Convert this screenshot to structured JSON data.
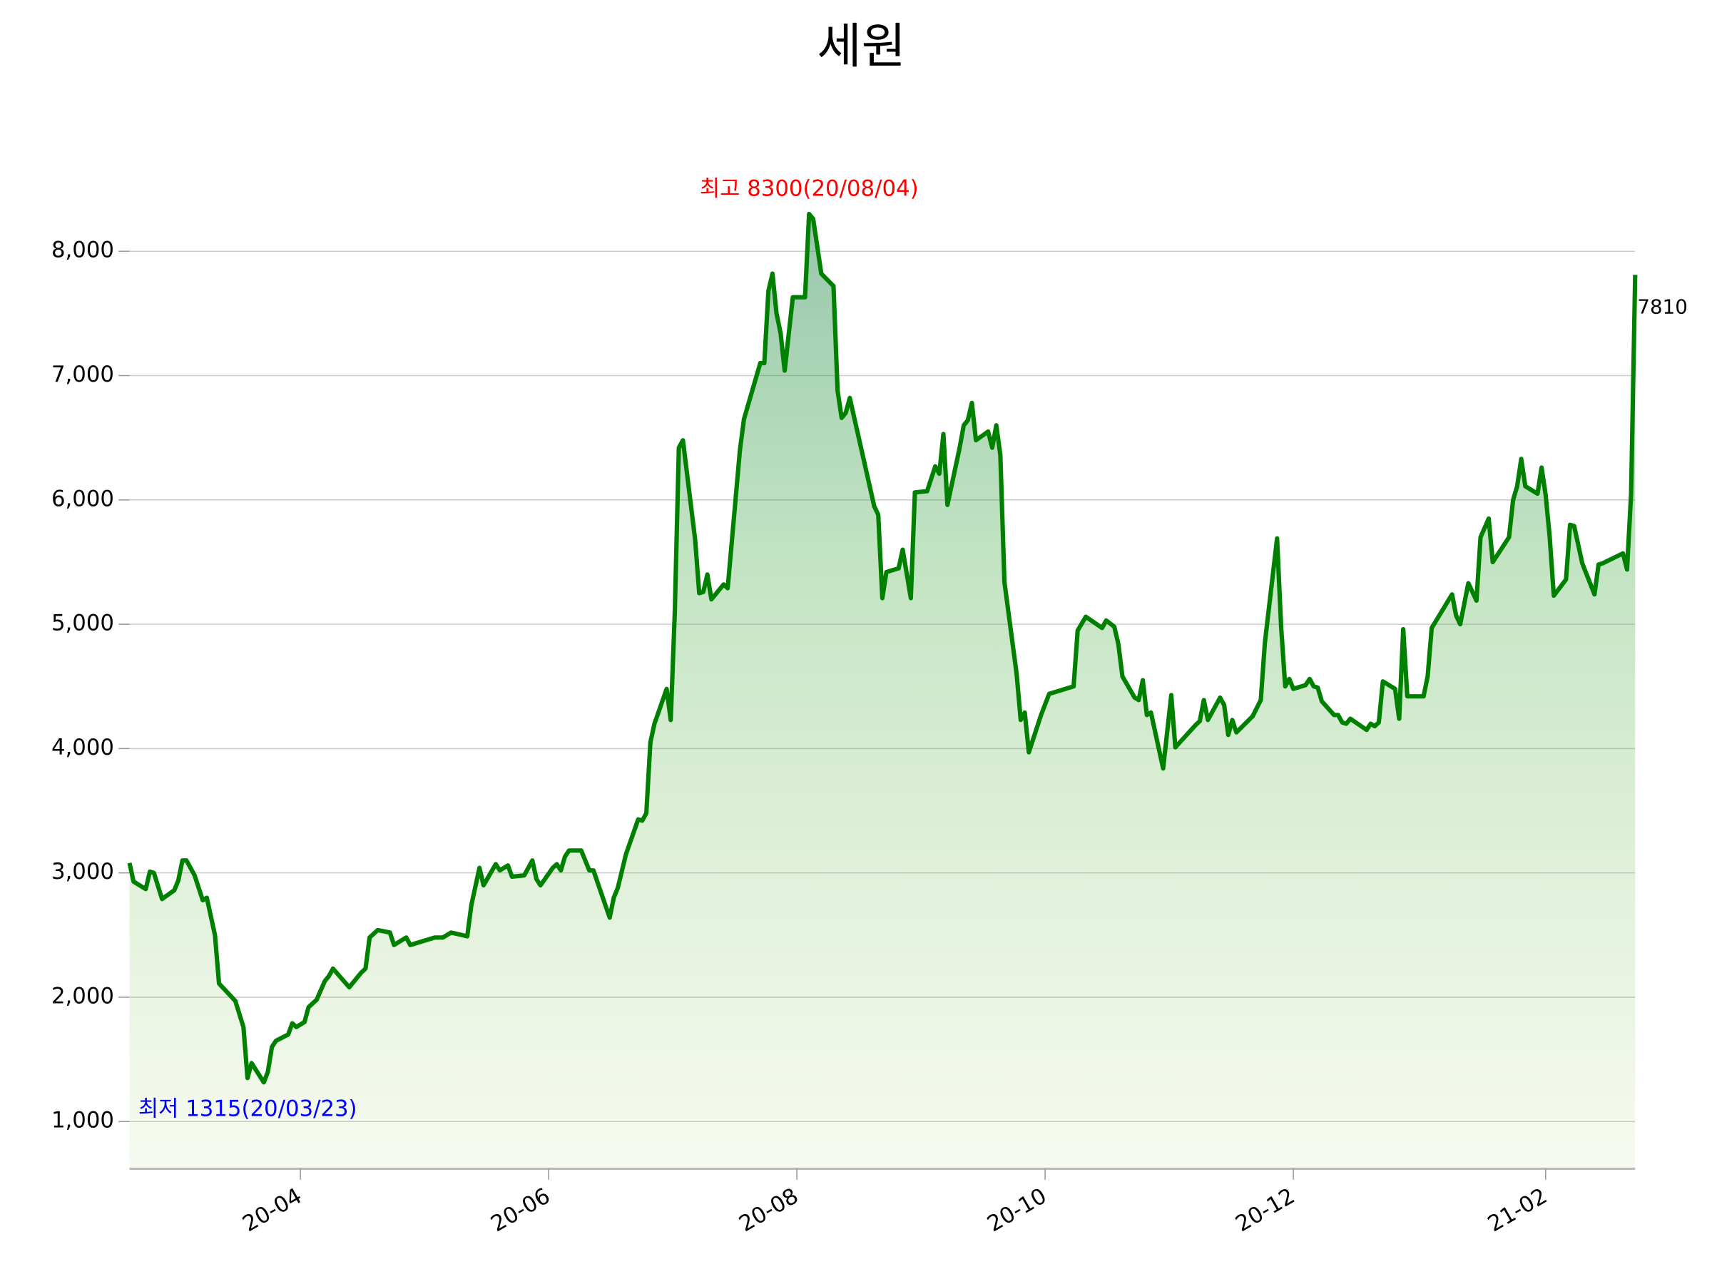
{
  "chart_data": {
    "type": "line",
    "title": "세원",
    "x": [
      "2020-02-19",
      "2020-02-20",
      "2020-02-23",
      "2020-02-24",
      "2020-02-25",
      "2020-02-27",
      "2020-03-01",
      "2020-03-02",
      "2020-03-03",
      "2020-03-04",
      "2020-03-06",
      "2020-03-08",
      "2020-03-09",
      "2020-03-11",
      "2020-03-12",
      "2020-03-16",
      "2020-03-18",
      "2020-03-19",
      "2020-03-20",
      "2020-03-23",
      "2020-03-24",
      "2020-03-25",
      "2020-03-26",
      "2020-03-29",
      "2020-03-30",
      "2020-03-31",
      "2020-04-02",
      "2020-04-03",
      "2020-04-05",
      "2020-04-07",
      "2020-04-08",
      "2020-04-09",
      "2020-04-13",
      "2020-04-16",
      "2020-04-17",
      "2020-04-18",
      "2020-04-20",
      "2020-04-23",
      "2020-04-24",
      "2020-04-27",
      "2020-04-28",
      "2020-05-04",
      "2020-05-06",
      "2020-05-08",
      "2020-05-12",
      "2020-05-13",
      "2020-05-15",
      "2020-05-16",
      "2020-05-19",
      "2020-05-20",
      "2020-05-22",
      "2020-05-23",
      "2020-05-26",
      "2020-05-28",
      "2020-05-29",
      "2020-05-30",
      "2020-06-02",
      "2020-06-03",
      "2020-06-04",
      "2020-06-05",
      "2020-06-06",
      "2020-06-09",
      "2020-06-11",
      "2020-06-12",
      "2020-06-16",
      "2020-06-17",
      "2020-06-18",
      "2020-06-20",
      "2020-06-23",
      "2020-06-24",
      "2020-06-25",
      "2020-06-26",
      "2020-06-27",
      "2020-06-30",
      "2020-07-01",
      "2020-07-02",
      "2020-07-03",
      "2020-07-04",
      "2020-07-07",
      "2020-07-08",
      "2020-07-09",
      "2020-07-10",
      "2020-07-11",
      "2020-07-14",
      "2020-07-15",
      "2020-07-18",
      "2020-07-19",
      "2020-07-23",
      "2020-07-24",
      "2020-07-25",
      "2020-07-26",
      "2020-07-27",
      "2020-07-28",
      "2020-07-29",
      "2020-07-31",
      "2020-08-03",
      "2020-08-04",
      "2020-08-05",
      "2020-08-07",
      "2020-08-10",
      "2020-08-11",
      "2020-08-12",
      "2020-08-13",
      "2020-08-14",
      "2020-08-20",
      "2020-08-21",
      "2020-08-22",
      "2020-08-23",
      "2020-08-26",
      "2020-08-27",
      "2020-08-29",
      "2020-08-30",
      "2020-09-02",
      "2020-09-04",
      "2020-09-05",
      "2020-09-06",
      "2020-09-07",
      "2020-09-10",
      "2020-09-11",
      "2020-09-12",
      "2020-09-13",
      "2020-09-14",
      "2020-09-17",
      "2020-09-18",
      "2020-09-19",
      "2020-09-20",
      "2020-09-21",
      "2020-09-24",
      "2020-09-25",
      "2020-09-26",
      "2020-09-27",
      "2020-09-30",
      "2020-10-02",
      "2020-10-08",
      "2020-10-09",
      "2020-10-11",
      "2020-10-15",
      "2020-10-16",
      "2020-10-18",
      "2020-10-19",
      "2020-10-20",
      "2020-10-23",
      "2020-10-24",
      "2020-10-25",
      "2020-10-26",
      "2020-10-27",
      "2020-10-30",
      "2020-11-01",
      "2020-11-02",
      "2020-11-07",
      "2020-11-08",
      "2020-11-09",
      "2020-11-10",
      "2020-11-13",
      "2020-11-14",
      "2020-11-15",
      "2020-11-16",
      "2020-11-17",
      "2020-11-21",
      "2020-11-23",
      "2020-11-24",
      "2020-11-27",
      "2020-11-28",
      "2020-11-29",
      "2020-11-30",
      "2020-12-01",
      "2020-12-04",
      "2020-12-05",
      "2020-12-06",
      "2020-12-07",
      "2020-12-08",
      "2020-12-11",
      "2020-12-12",
      "2020-12-13",
      "2020-12-14",
      "2020-12-15",
      "2020-12-19",
      "2020-12-20",
      "2020-12-21",
      "2020-12-22",
      "2020-12-23",
      "2020-12-26",
      "2020-12-27",
      "2020-12-28",
      "2020-12-29",
      "2021-01-02",
      "2021-01-03",
      "2021-01-04",
      "2021-01-09",
      "2021-01-10",
      "2021-01-11",
      "2021-01-13",
      "2021-01-15",
      "2021-01-16",
      "2021-01-18",
      "2021-01-19",
      "2021-01-23",
      "2021-01-24",
      "2021-01-25",
      "2021-01-26",
      "2021-01-27",
      "2021-01-30",
      "2021-01-31",
      "2021-02-01",
      "2021-02-02",
      "2021-02-03",
      "2021-02-06",
      "2021-02-07",
      "2021-02-08",
      "2021-02-10",
      "2021-02-13",
      "2021-02-14",
      "2021-02-15",
      "2021-02-20",
      "2021-02-21",
      "2021-02-22",
      "2021-02-23"
    ],
    "values": [
      3080,
      2930,
      2870,
      3010,
      3000,
      2790,
      2860,
      2940,
      3100,
      3100,
      2980,
      2780,
      2800,
      2500,
      2110,
      1970,
      1760,
      1350,
      1470,
      1315,
      1400,
      1600,
      1650,
      1700,
      1790,
      1760,
      1800,
      1920,
      1980,
      2130,
      2170,
      2230,
      2080,
      2200,
      2230,
      2480,
      2540,
      2520,
      2420,
      2480,
      2420,
      2480,
      2480,
      2520,
      2490,
      2740,
      3040,
      2900,
      3070,
      3020,
      3060,
      2970,
      2980,
      3100,
      2950,
      2900,
      3040,
      3070,
      3020,
      3130,
      3180,
      3180,
      3020,
      3020,
      2640,
      2800,
      2880,
      3150,
      3430,
      3420,
      3480,
      4050,
      4200,
      4480,
      4230,
      5100,
      6420,
      6480,
      5680,
      5250,
      5260,
      5400,
      5200,
      5320,
      5290,
      6400,
      6650,
      7100,
      7100,
      7680,
      7820,
      7500,
      7340,
      7040,
      7630,
      7630,
      8300,
      8260,
      7820,
      7720,
      6880,
      6660,
      6700,
      6820,
      5950,
      5880,
      5210,
      5420,
      5450,
      5600,
      5210,
      6060,
      6070,
      6270,
      6210,
      6530,
      5960,
      6420,
      6600,
      6640,
      6780,
      6480,
      6550,
      6420,
      6600,
      6360,
      5340,
      4600,
      4230,
      4290,
      3970,
      4270,
      4440,
      4500,
      4950,
      5060,
      4970,
      5030,
      4980,
      4840,
      4580,
      4410,
      4390,
      4550,
      4270,
      4290,
      3840,
      4430,
      4010,
      4190,
      4220,
      4390,
      4230,
      4410,
      4350,
      4110,
      4230,
      4130,
      4260,
      4390,
      4850,
      5690,
      4980,
      4500,
      4560,
      4480,
      4510,
      4560,
      4500,
      4490,
      4380,
      4270,
      4270,
      4210,
      4200,
      4240,
      4150,
      4200,
      4180,
      4210,
      4540,
      4480,
      4240,
      4960,
      4420,
      4420,
      4580,
      4970,
      5240,
      5070,
      5000,
      5330,
      5190,
      5700,
      5850,
      5500,
      5700,
      6000,
      6110,
      6330,
      6110,
      6050,
      6260,
      6040,
      5700,
      5230,
      5360,
      5800,
      5790,
      5490,
      5240,
      5480,
      5490,
      5570,
      5440,
      6050,
      7810
    ],
    "color": "#008000",
    "xlim": [
      "2020-02-19",
      "2021-02-23"
    ],
    "xticks": [
      {
        "value": "2020-04-01",
        "label": "20-04"
      },
      {
        "value": "2020-06-01",
        "label": "20-06"
      },
      {
        "value": "2020-08-01",
        "label": "20-08"
      },
      {
        "value": "2020-10-01",
        "label": "20-10"
      },
      {
        "value": "2020-12-01",
        "label": "20-12"
      },
      {
        "value": "2021-02-01",
        "label": "21-02"
      }
    ],
    "ylim": [
      620,
      8900
    ],
    "yticks": [
      {
        "value": 1000,
        "label": "1,000"
      },
      {
        "value": 2000,
        "label": "2,000"
      },
      {
        "value": 3000,
        "label": "3,000"
      },
      {
        "value": 4000,
        "label": "4,000"
      },
      {
        "value": 5000,
        "label": "5,000"
      },
      {
        "value": 6000,
        "label": "6,000"
      },
      {
        "value": 7000,
        "label": "7,000"
      },
      {
        "value": 8000,
        "label": "8,000"
      }
    ],
    "grid": true,
    "annotations": {
      "max": {
        "text": "최고 8300(20/08/04)",
        "color": "#ff0000"
      },
      "min": {
        "text": "최저 1315(20/03/23)",
        "color": "#0000ff"
      },
      "last": {
        "text": "7810",
        "color": "#000000"
      }
    }
  }
}
